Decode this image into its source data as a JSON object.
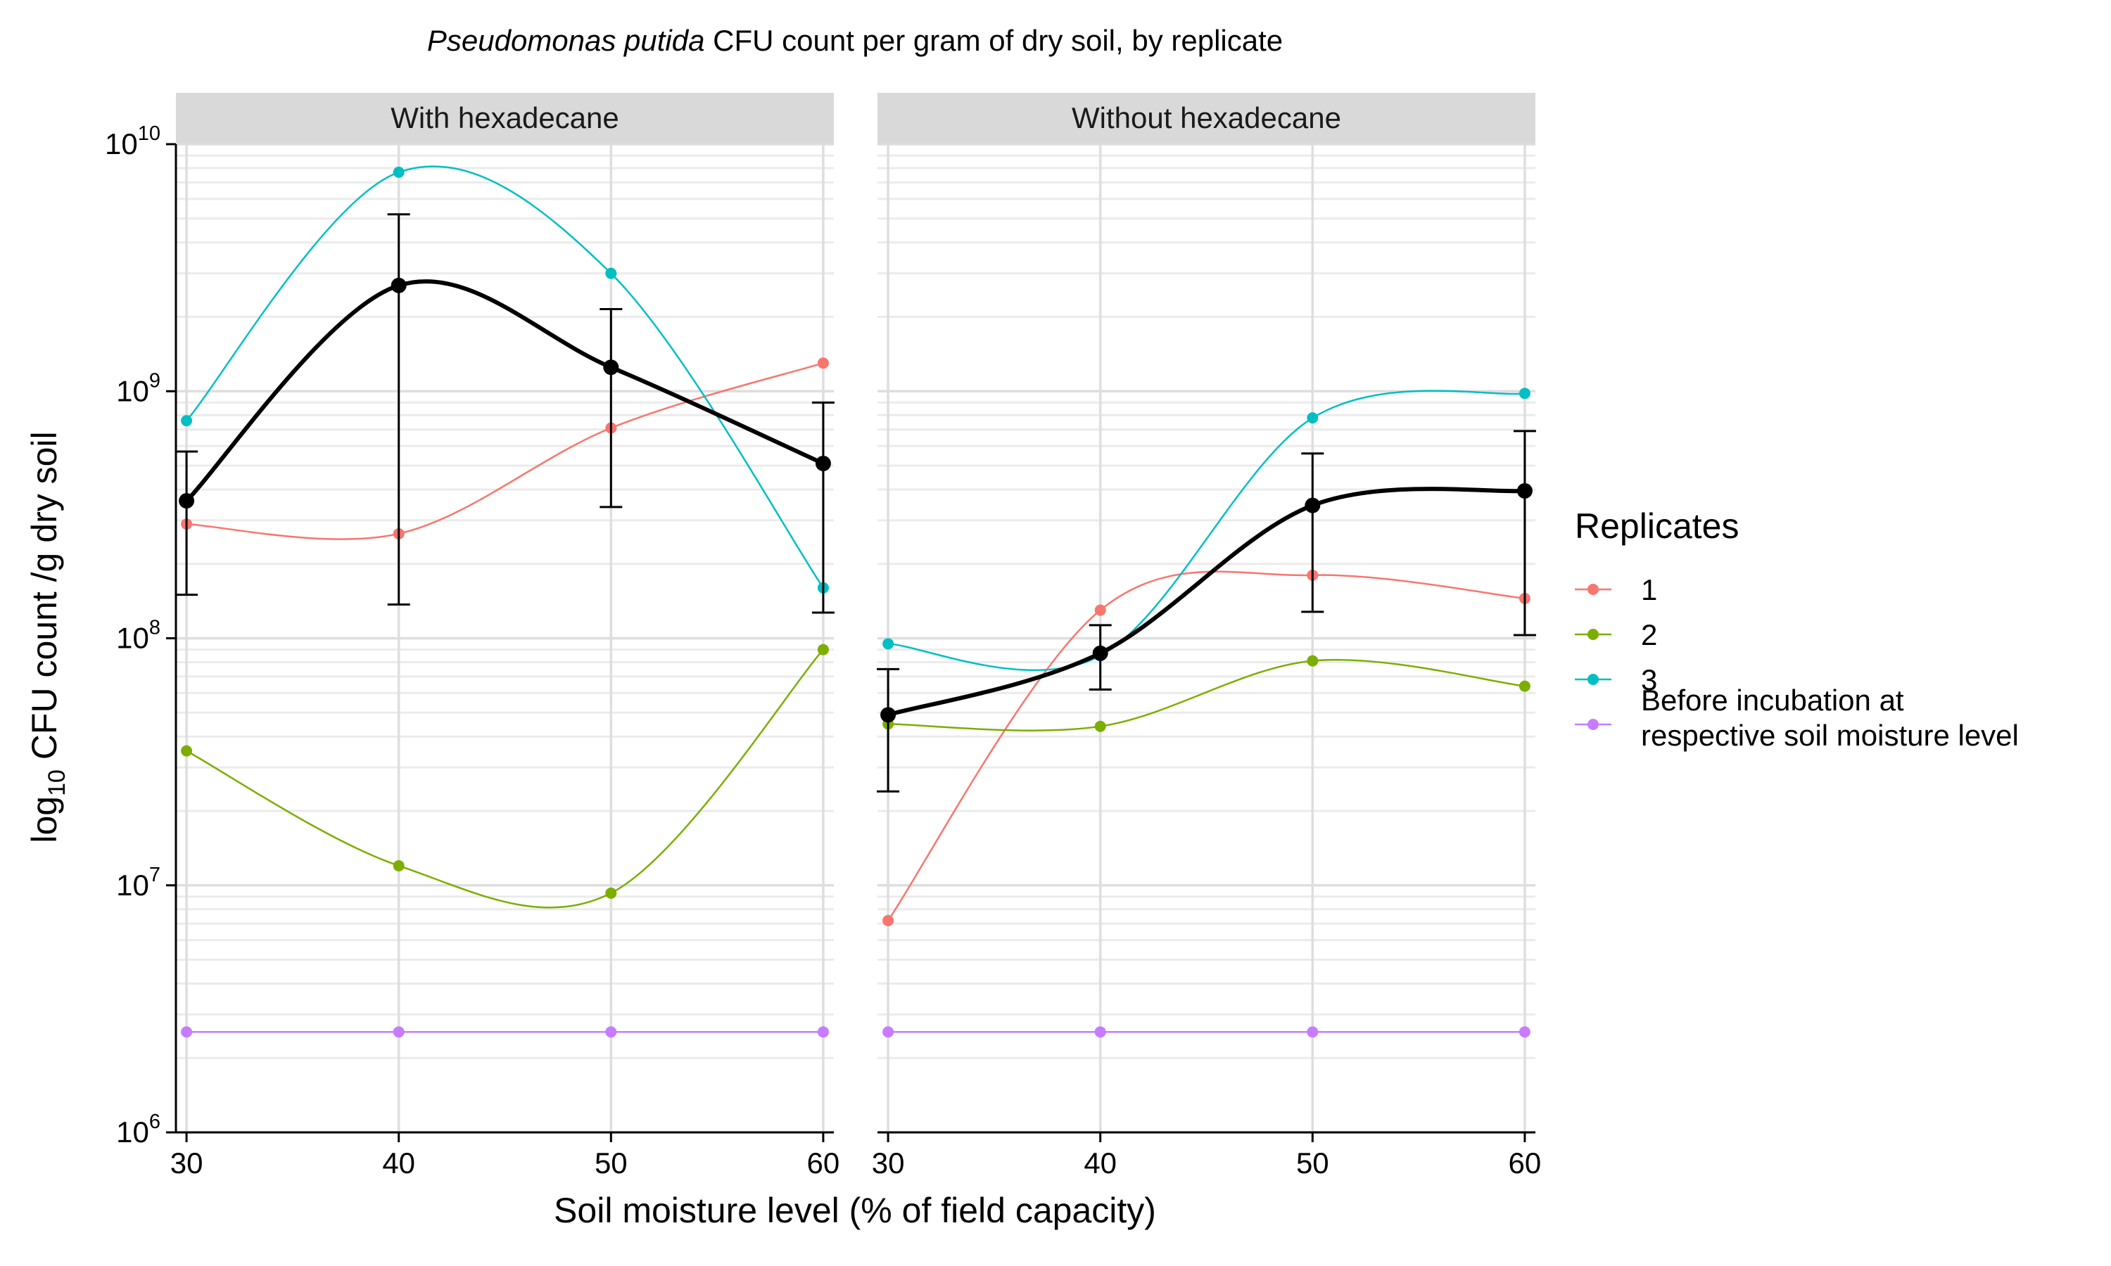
{
  "chart_data": {
    "type": "line",
    "title_italic": "Pseudomonas putida",
    "title_rest": " CFU count per gram of dry soil, by replicate",
    "xlabel": "Soil moisture level (% of field capacity)",
    "ylabel_prefix": "log",
    "ylabel_sub": "10",
    "ylabel_rest": " CFU count /g dry soil",
    "x": [
      30,
      40,
      50,
      60
    ],
    "x_ticks": [
      "30",
      "40",
      "50",
      "60"
    ],
    "xlim": [
      29.5,
      60.5
    ],
    "ylim": [
      1000000,
      10000000000
    ],
    "y_scale": "log",
    "y_ticks": [
      {
        "value": 1000000,
        "base": "10",
        "exp": "6"
      },
      {
        "value": 10000000,
        "base": "10",
        "exp": "7"
      },
      {
        "value": 100000000,
        "base": "10",
        "exp": "8"
      },
      {
        "value": 1000000000,
        "base": "10",
        "exp": "9"
      },
      {
        "value": 10000000000,
        "base": "10",
        "exp": "10"
      }
    ],
    "grid": true,
    "legend_position": "right",
    "legend_title": "Replicates",
    "legend": [
      {
        "name": "1",
        "color": "#F8766D"
      },
      {
        "name": "2",
        "color": "#7CAE00"
      },
      {
        "name": "3",
        "color": "#00BFC4"
      },
      {
        "name": "Before incubation at respective soil moisture level",
        "lines": [
          "Before incubation at",
          "respective soil moisture level"
        ],
        "color": "#C77CFF"
      }
    ],
    "panels": [
      {
        "label": "With hexadecane",
        "series": [
          {
            "name": "1",
            "color": "#F8766D",
            "values": [
              290000000,
              265000000,
              710000000,
              1300000000
            ]
          },
          {
            "name": "2",
            "color": "#7CAE00",
            "values": [
              35000000,
              12000000,
              9300000,
              90000000
            ]
          },
          {
            "name": "3",
            "color": "#00BFC4",
            "values": [
              760000000,
              7700000000,
              3000000000,
              160000000
            ]
          },
          {
            "name": "Before incubation at respective soil moisture level",
            "color": "#C77CFF",
            "values": [
              2550000,
              2550000,
              2550000,
              2550000
            ]
          }
        ],
        "mean": {
          "color": "#000000",
          "values": [
            360000000,
            2680000000,
            1250000000,
            510000000
          ]
        },
        "error_bars": [
          {
            "low": 150000000,
            "high": 570000000
          },
          {
            "low": 137000000,
            "high": 5200000000
          },
          {
            "low": 340000000,
            "high": 2150000000
          },
          {
            "low": 127000000,
            "high": 900000000
          }
        ]
      },
      {
        "label": "Without hexadecane",
        "series": [
          {
            "name": "1",
            "color": "#F8766D",
            "values": [
              7200000,
              130000000,
              180000000,
              145000000
            ]
          },
          {
            "name": "2",
            "color": "#7CAE00",
            "values": [
              45000000,
              44000000,
              81000000,
              64000000
            ]
          },
          {
            "name": "3",
            "color": "#00BFC4",
            "values": [
              95000000,
              85000000,
              780000000,
              980000000
            ]
          },
          {
            "name": "Before incubation at respective soil moisture level",
            "color": "#C77CFF",
            "values": [
              2550000,
              2550000,
              2550000,
              2550000
            ]
          }
        ],
        "mean": {
          "color": "#000000",
          "values": [
            49000000,
            87000000,
            345000000,
            395000000
          ]
        },
        "error_bars": [
          {
            "low": 24000000,
            "high": 75000000
          },
          {
            "low": 62000000,
            "high": 113000000
          },
          {
            "low": 128000000,
            "high": 560000000
          },
          {
            "low": 103000000,
            "high": 690000000
          }
        ]
      }
    ]
  }
}
